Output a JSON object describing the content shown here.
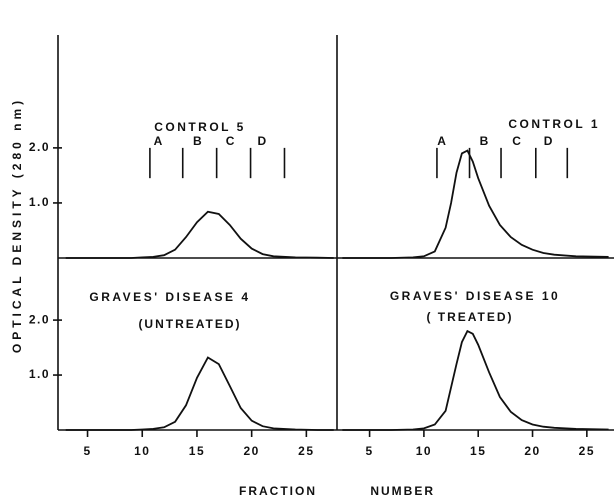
{
  "ylabel": "OPTICAL   DENSITY   (280 nm)",
  "xlabel": "FRACTION          NUMBER",
  "chart_data": [
    {
      "type": "line",
      "title": "CONTROL 5",
      "x": [
        3,
        5,
        7,
        9,
        10,
        11,
        12,
        13,
        14,
        15,
        16,
        17,
        18,
        19,
        20,
        21,
        22,
        24,
        26,
        27.5
      ],
      "series": [
        {
          "color": "#111111",
          "values": [
            0,
            0,
            0,
            0,
            0.01,
            0.02,
            0.05,
            0.15,
            0.38,
            0.65,
            0.84,
            0.8,
            0.6,
            0.35,
            0.17,
            0.07,
            0.03,
            0.01,
            0.005,
            0
          ]
        }
      ],
      "xlim": [
        2.3,
        27.8
      ],
      "ylim": [
        0,
        4.05
      ],
      "yticks": [
        {
          "value": 1,
          "label": "1.0"
        },
        {
          "value": 2,
          "label": "2.0"
        }
      ],
      "markers": {
        "positions": [
          10.7,
          13.7,
          16.8,
          19.9,
          23.0
        ],
        "range": [
          1.45,
          2.0
        ],
        "labels": [
          "A",
          "B",
          "C",
          "D"
        ],
        "label_x": [
          11.5,
          15.1,
          18.1,
          21.0
        ]
      }
    },
    {
      "type": "line",
      "title": "CONTROL 1",
      "x": [
        2.5,
        5,
        7,
        9,
        10,
        11,
        12,
        12.5,
        13,
        13.5,
        14,
        14.5,
        15,
        16,
        17,
        18,
        19,
        20,
        21,
        22,
        24,
        27
      ],
      "series": [
        {
          "color": "#111111",
          "values": [
            0,
            0,
            0,
            0.01,
            0.03,
            0.12,
            0.55,
            1.0,
            1.55,
            1.9,
            1.95,
            1.75,
            1.45,
            0.95,
            0.6,
            0.38,
            0.24,
            0.15,
            0.09,
            0.06,
            0.03,
            0.02
          ]
        }
      ],
      "xlim": [
        2,
        27.5
      ],
      "ylim": [
        0,
        4.05
      ],
      "markers": {
        "positions": [
          11.2,
          14.2,
          17.1,
          20.3,
          23.2
        ],
        "range": [
          1.45,
          2.0
        ],
        "labels": [
          "A",
          "B",
          "C",
          "D"
        ],
        "label_x": [
          11.7,
          15.6,
          18.6,
          21.5
        ]
      }
    },
    {
      "type": "line",
      "title": "GRAVES' DISEASE 4",
      "subtitle": "(UNTREATED)",
      "x": [
        3,
        5,
        7,
        9,
        10,
        11,
        12,
        13,
        14,
        15,
        16,
        17,
        18,
        19,
        20,
        21,
        22,
        24,
        26,
        27.5
      ],
      "series": [
        {
          "color": "#111111",
          "values": [
            0,
            0,
            0,
            0,
            0.01,
            0.02,
            0.05,
            0.15,
            0.45,
            0.95,
            1.32,
            1.2,
            0.8,
            0.4,
            0.17,
            0.07,
            0.03,
            0.01,
            0,
            0
          ]
        }
      ],
      "xlim": [
        2.3,
        27.8
      ],
      "ylim": [
        0,
        3.13
      ],
      "yticks": [
        {
          "value": 1,
          "label": "1.0"
        },
        {
          "value": 2,
          "label": "2.0"
        }
      ],
      "xticks": [
        5,
        10,
        15,
        20,
        25
      ]
    },
    {
      "type": "line",
      "title": "GRAVES' DISEASE 10",
      "subtitle": "( TREATED)",
      "x": [
        2.5,
        5,
        7,
        9,
        10,
        11,
        12,
        13,
        13.5,
        14,
        14.5,
        15,
        16,
        17,
        18,
        19,
        20,
        21,
        22,
        24,
        27
      ],
      "series": [
        {
          "color": "#111111",
          "values": [
            0,
            0,
            0,
            0.01,
            0.03,
            0.1,
            0.35,
            1.2,
            1.6,
            1.8,
            1.75,
            1.55,
            1.05,
            0.6,
            0.33,
            0.18,
            0.1,
            0.06,
            0.04,
            0.02,
            0.01
          ]
        }
      ],
      "xlim": [
        2,
        27.5
      ],
      "ylim": [
        0,
        3.13
      ],
      "xticks": [
        5,
        10,
        15,
        20,
        25
      ]
    }
  ]
}
